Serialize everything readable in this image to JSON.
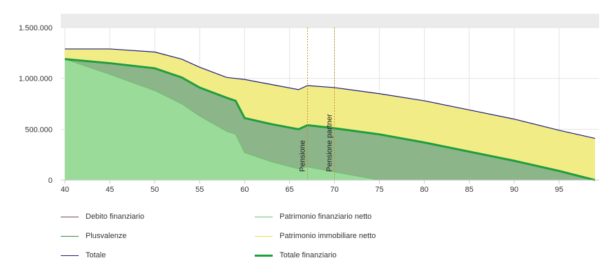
{
  "chart_data": {
    "type": "area",
    "x": [
      40,
      45,
      50,
      53,
      55,
      58,
      59,
      60,
      63,
      66,
      67,
      70,
      75,
      80,
      85,
      90,
      95,
      99
    ],
    "xlim": [
      40,
      99
    ],
    "ylim": [
      0,
      1500000
    ],
    "xticks": [
      40,
      45,
      50,
      55,
      60,
      65,
      70,
      75,
      80,
      85,
      90,
      95
    ],
    "yticks": [
      0,
      500000,
      1000000,
      1500000
    ],
    "ytick_labels": [
      "0",
      "500.000",
      "1.000.000",
      "1.500.000"
    ],
    "grid": true,
    "series": [
      {
        "name": "Debito finanziario",
        "color": "#7a3b5c",
        "type": "line",
        "values": [
          0,
          0,
          0,
          0,
          0,
          0,
          0,
          0,
          0,
          0,
          0,
          0,
          0,
          0,
          0,
          0,
          0,
          0
        ]
      },
      {
        "name": "Patrimonio finanziario netto",
        "color": "#7fd67f",
        "fill": "#9adb9a",
        "type": "area",
        "values": [
          1190000,
          1040000,
          880000,
          750000,
          630000,
          480000,
          450000,
          270000,
          180000,
          110000,
          130000,
          80000,
          0,
          0,
          0,
          0,
          0,
          0
        ]
      },
      {
        "name": "Plusvalenze",
        "color": "#2e8b57",
        "type": "line",
        "values": [
          1190000,
          1150000,
          1100000,
          1010000,
          910000,
          810000,
          780000,
          610000,
          550000,
          500000,
          540000,
          510000,
          450000,
          370000,
          280000,
          190000,
          90000,
          0
        ]
      },
      {
        "name": "Patrimonio immobiliare netto",
        "color": "#e6dd5a",
        "fill": "#f2ec86",
        "type": "area",
        "values": [
          1290000,
          1290000,
          1260000,
          1190000,
          1110000,
          1010000,
          1000000,
          990000,
          940000,
          890000,
          930000,
          910000,
          850000,
          780000,
          690000,
          600000,
          490000,
          410000
        ]
      },
      {
        "name": "Totale",
        "color": "#1c1c7a",
        "type": "line",
        "values": [
          1290000,
          1290000,
          1260000,
          1190000,
          1110000,
          1010000,
          1000000,
          990000,
          940000,
          890000,
          930000,
          910000,
          850000,
          780000,
          690000,
          600000,
          490000,
          410000
        ]
      },
      {
        "name": "Totale finanziario",
        "color": "#1e9e3c",
        "type": "line",
        "values": [
          1190000,
          1150000,
          1100000,
          1010000,
          910000,
          810000,
          780000,
          610000,
          550000,
          500000,
          540000,
          510000,
          450000,
          370000,
          280000,
          190000,
          90000,
          0
        ]
      }
    ],
    "annotations": [
      {
        "x": 67,
        "label": "Pensione",
        "color": "#c98a2a"
      },
      {
        "x": 70,
        "label": "Pensione partner",
        "color": "#c98a2a"
      }
    ],
    "legend": [
      {
        "label": "Debito finanziario",
        "color": "#7a3b5c"
      },
      {
        "label": "Patrimonio finanziario netto",
        "color": "#6cbf6c"
      },
      {
        "label": "Plusvalenze",
        "color": "#2e8b57"
      },
      {
        "label": "Patrimonio immobiliare netto",
        "color": "#e6dd5a"
      },
      {
        "label": "Totale",
        "color": "#1c1c7a"
      },
      {
        "label": "Totale finanziario",
        "color": "#1e9e3c",
        "bold": true
      }
    ],
    "legend_position": "bottom"
  }
}
